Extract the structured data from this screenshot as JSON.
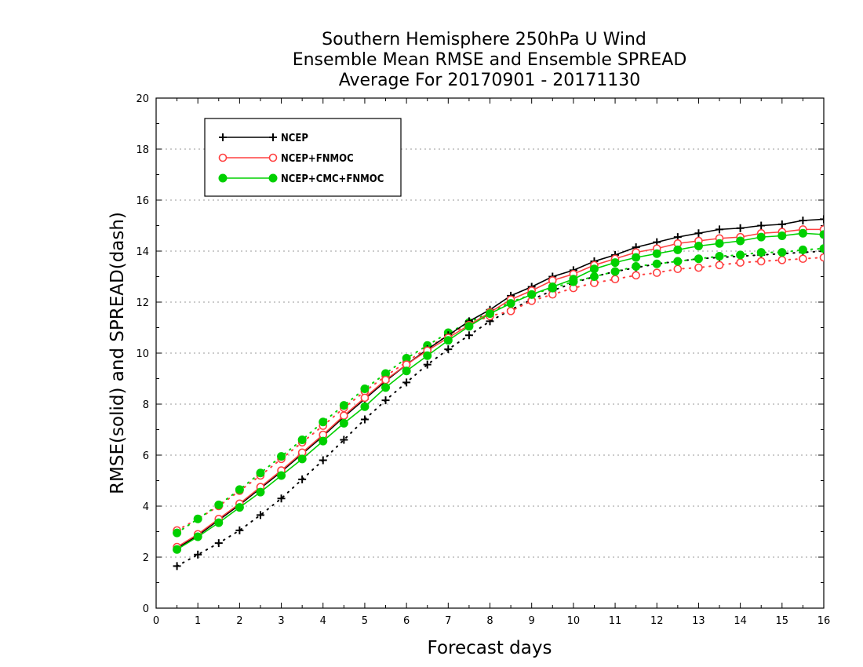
{
  "chart_data": {
    "type": "line",
    "title": [
      "Southern Hemisphere 250hPa U Wind",
      "Ensemble Mean RMSE and Ensemble SPREAD",
      "Average For 20170901 - 20171130"
    ],
    "xlabel": "Forecast days",
    "ylabel": "RMSE(solid) and SPREAD(dash)",
    "xlim": [
      0,
      16
    ],
    "ylim": [
      0,
      20
    ],
    "xticks": [
      "0",
      "1",
      "2",
      "3",
      "4",
      "5",
      "6",
      "7",
      "8",
      "9",
      "10",
      "11",
      "12",
      "13",
      "14",
      "15",
      "16"
    ],
    "yticks": [
      "0",
      "2",
      "4",
      "6",
      "8",
      "10",
      "12",
      "14",
      "16",
      "18",
      "20"
    ],
    "grid": "horizontal dotted",
    "legend_position": "top-left",
    "x": [
      0.5,
      1,
      1.5,
      2,
      2.5,
      3,
      3.5,
      4,
      4.5,
      5,
      5.5,
      6,
      6.5,
      7,
      7.5,
      8,
      8.5,
      9,
      9.5,
      10,
      10.5,
      11,
      11.5,
      12,
      12.5,
      13,
      13.5,
      14,
      14.5,
      15,
      15.5,
      16
    ],
    "series": [
      {
        "name": "NCEP",
        "kind": "RMSE",
        "line": "solid",
        "marker": "plus",
        "color": "#000000",
        "values": [
          2.35,
          2.85,
          3.45,
          4.05,
          4.7,
          5.35,
          6.05,
          6.75,
          7.5,
          8.2,
          8.9,
          9.55,
          10.15,
          10.7,
          11.25,
          11.7,
          12.25,
          12.6,
          13.0,
          13.25,
          13.6,
          13.85,
          14.15,
          14.35,
          14.55,
          14.7,
          14.85,
          14.9,
          15.0,
          15.05,
          15.2,
          15.25
        ]
      },
      {
        "name": "NCEP+FNMOC",
        "kind": "RMSE",
        "line": "solid",
        "marker": "open-circle",
        "color": "#ff4040",
        "values": [
          2.4,
          2.9,
          3.5,
          4.1,
          4.75,
          5.4,
          6.1,
          6.8,
          7.55,
          8.25,
          8.95,
          9.55,
          10.1,
          10.6,
          11.1,
          11.6,
          12.1,
          12.45,
          12.85,
          13.1,
          13.45,
          13.7,
          13.95,
          14.1,
          14.3,
          14.4,
          14.5,
          14.55,
          14.7,
          14.75,
          14.85,
          14.85
        ]
      },
      {
        "name": "NCEP+CMC+FNMOC",
        "kind": "RMSE",
        "line": "solid",
        "marker": "filled-circle",
        "color": "#00d000",
        "values": [
          2.3,
          2.8,
          3.35,
          3.95,
          4.55,
          5.2,
          5.85,
          6.55,
          7.25,
          7.9,
          8.65,
          9.3,
          9.9,
          10.5,
          11.05,
          11.55,
          11.95,
          12.3,
          12.6,
          12.9,
          13.3,
          13.55,
          13.75,
          13.9,
          14.05,
          14.2,
          14.3,
          14.4,
          14.55,
          14.6,
          14.7,
          14.65
        ]
      },
      {
        "name": "NCEP",
        "kind": "SPREAD",
        "line": "dotted",
        "marker": "plus",
        "color": "#000000",
        "values": [
          1.65,
          2.1,
          2.55,
          3.05,
          3.65,
          4.3,
          5.05,
          5.8,
          6.6,
          7.4,
          8.15,
          8.85,
          9.55,
          10.15,
          10.7,
          11.25,
          11.7,
          12.1,
          12.45,
          12.75,
          13.0,
          13.2,
          13.35,
          13.5,
          13.6,
          13.7,
          13.75,
          13.8,
          13.85,
          13.9,
          13.95,
          14.0
        ]
      },
      {
        "name": "NCEP+FNMOC",
        "kind": "SPREAD",
        "line": "dotted",
        "marker": "open-circle",
        "color": "#ff4040",
        "values": [
          3.05,
          3.5,
          4.0,
          4.6,
          5.2,
          5.85,
          6.5,
          7.15,
          7.85,
          8.5,
          9.1,
          9.65,
          10.2,
          10.7,
          11.15,
          11.45,
          11.65,
          12.05,
          12.3,
          12.55,
          12.75,
          12.9,
          13.05,
          13.15,
          13.3,
          13.35,
          13.45,
          13.55,
          13.6,
          13.65,
          13.7,
          13.75
        ]
      },
      {
        "name": "NCEP+CMC+FNMOC",
        "kind": "SPREAD",
        "line": "dotted",
        "marker": "filled-circle",
        "color": "#00d000",
        "values": [
          2.95,
          3.5,
          4.05,
          4.65,
          5.3,
          5.95,
          6.6,
          7.3,
          7.95,
          8.6,
          9.2,
          9.8,
          10.3,
          10.8,
          11.2,
          11.6,
          12.0,
          12.3,
          12.55,
          12.8,
          13.0,
          13.2,
          13.4,
          13.5,
          13.6,
          13.7,
          13.8,
          13.85,
          13.95,
          13.95,
          14.05,
          14.1
        ]
      }
    ],
    "legend": [
      "NCEP",
      "NCEP+FNMOC",
      "NCEP+CMC+FNMOC"
    ]
  }
}
